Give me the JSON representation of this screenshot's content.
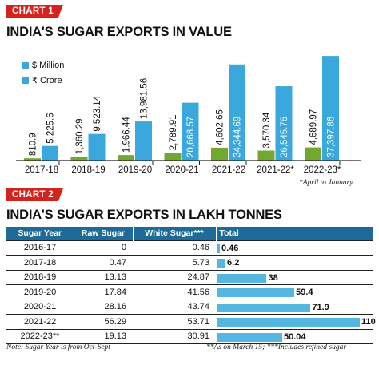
{
  "chart1": {
    "tag": "CHART 1",
    "title": "INDIA'S SUGAR EXPORTS IN VALUE",
    "legend": [
      "$ Million",
      "₹ Crore"
    ],
    "note": "*April to January"
  },
  "chart2": {
    "tag": "CHART 2",
    "title": "INDIA'S SUGAR EXPORTS IN LAKH TONNES",
    "headers": [
      "Sugar Year",
      "Raw Sugar",
      "White Sugar***",
      "Total"
    ],
    "footnote_left": "Note: Sugar Year is from Oct-Sept",
    "footnote_right": "**As on March 15; ***Includes refined sugar"
  },
  "chart_data": [
    {
      "type": "bar",
      "title": "INDIA'S SUGAR EXPORTS IN VALUE",
      "categories": [
        "2017-18",
        "2018-19",
        "2019-20",
        "2020-21",
        "2021-22",
        "2021-22*",
        "2022-23*"
      ],
      "series": [
        {
          "name": "$ Million",
          "color": "#72a830",
          "values": [
            810.9,
            1360.29,
            1966.44,
            2789.91,
            4602.65,
            3570.34,
            4689.97
          ],
          "labels": [
            "810.9",
            "1,360.29",
            "1,966.44",
            "2,789.91",
            "4,602.65",
            "3,570.34",
            "4,689.97"
          ]
        },
        {
          "name": "₹ Crore",
          "color": "#3aa8dc",
          "values": [
            5225.6,
            9523.14,
            13981.56,
            20668.57,
            34344.69,
            26545.76,
            37397.86
          ],
          "labels": [
            "5,225.6",
            "9,523.14",
            "13,981.56",
            "20,668.57",
            "34,344.69",
            "26,545.76",
            "37,397.86"
          ]
        }
      ],
      "legend_position": "top-left",
      "grid": false
    },
    {
      "type": "table",
      "title": "INDIA'S SUGAR EXPORTS IN LAKH TONNES",
      "columns": [
        "Sugar Year",
        "Raw Sugar",
        "White Sugar***",
        "Total"
      ],
      "rows": [
        {
          "year": "2016-17",
          "raw": "0",
          "white": "0.46",
          "total": 0.46,
          "total_label": "0.46"
        },
        {
          "year": "2017-18",
          "raw": "0.47",
          "white": "5.73",
          "total": 6.2,
          "total_label": "6.2"
        },
        {
          "year": "2018-19",
          "raw": "13.13",
          "white": "24.87",
          "total": 38,
          "total_label": "38"
        },
        {
          "year": "2019-20",
          "raw": "17.84",
          "white": "41.56",
          "total": 59.4,
          "total_label": "59.4"
        },
        {
          "year": "2020-21",
          "raw": "28.16",
          "white": "43.74",
          "total": 71.9,
          "total_label": "71.9"
        },
        {
          "year": "2021-22",
          "raw": "56.29",
          "white": "53.71",
          "total": 110,
          "total_label": "110"
        },
        {
          "year": "2022-23**",
          "raw": "19.13",
          "white": "30.91",
          "total": 50.04,
          "total_label": "50.04"
        }
      ],
      "bar_color": "#55b7df"
    }
  ]
}
